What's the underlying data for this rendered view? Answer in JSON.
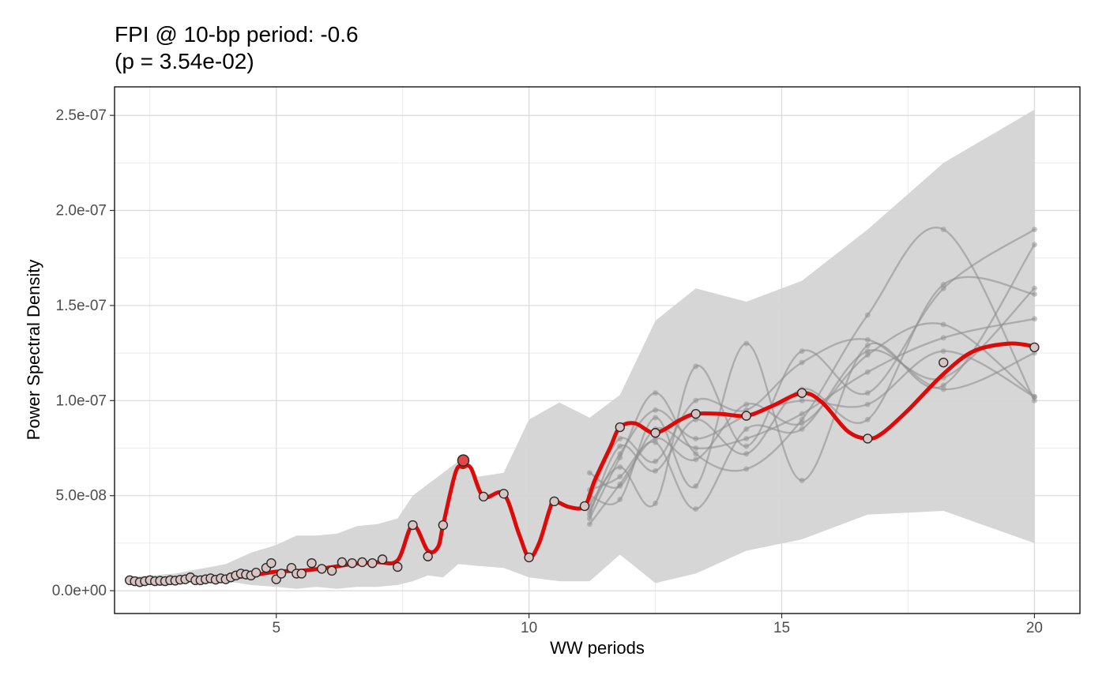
{
  "chart_data": {
    "type": "line",
    "title": "FPI @ 10-bp period: -0.6",
    "subtitle": "(p = 3.54e-02)",
    "xlabel": "WW periods",
    "ylabel": "Power Spectral Density",
    "xlim": [
      1.8,
      20.9
    ],
    "ylim": [
      -1.2e-08,
      2.65e-07
    ],
    "x_ticks": [
      5,
      10,
      15,
      20
    ],
    "x_tick_labels": [
      "5",
      "10",
      "15",
      "20"
    ],
    "y_ticks": [
      0,
      5e-08,
      1e-07,
      1.5e-07,
      2e-07,
      2.5e-07
    ],
    "y_tick_labels": [
      "0.0e+00",
      "5.0e-08",
      "1.0e-07",
      "1.5e-07",
      "2.0e-07",
      "2.5e-07"
    ],
    "grid": true,
    "legend": "none",
    "colors": {
      "observed_line": "#dd0a0a",
      "peak_point": "#e24848",
      "band_fill": "#d4d4d4",
      "null_line": "#8f8f8f",
      "point_fill": "#d9c4c4"
    },
    "envelope": {
      "x": [
        2.0,
        3.0,
        4.0,
        4.5,
        5.0,
        5.4,
        5.8,
        6.2,
        6.6,
        7.0,
        7.4,
        7.7,
        8.0,
        8.3,
        8.6,
        9.0,
        9.5,
        10.0,
        10.6,
        11.2,
        11.8,
        12.5,
        13.3,
        14.3,
        15.4,
        16.7,
        18.2,
        20.0
      ],
      "upper": [
        7e-09,
        9e-09,
        1.4e-08,
        2e-08,
        2.4e-08,
        2.9e-08,
        2.9e-08,
        3e-08,
        3.4e-08,
        3.5e-08,
        3.8e-08,
        5e-08,
        5.6e-08,
        6.2e-08,
        6.8e-08,
        6e-08,
        6.2e-08,
        9e-08,
        9.9e-08,
        9.1e-08,
        1.03e-07,
        1.42e-07,
        1.59e-07,
        1.52e-07,
        1.63e-07,
        1.9e-07,
        2.25e-07,
        2.53e-07
      ],
      "lower": [
        5e-09,
        5e-09,
        5e-09,
        3e-09,
        2e-09,
        1e-09,
        2e-09,
        1e-09,
        2e-09,
        2e-09,
        3e-09,
        5e-09,
        8e-09,
        7e-09,
        1.4e-08,
        1.3e-08,
        1.2e-08,
        7e-09,
        5e-09,
        5e-09,
        1.9e-08,
        4e-09,
        9e-09,
        2.1e-08,
        2.7e-08,
        4e-08,
        4.2e-08,
        2.5e-08
      ]
    },
    "null_x": [
      11.2,
      11.8,
      12.5,
      13.3,
      14.3,
      15.4,
      16.7,
      18.2,
      20.0
    ],
    "null_series": [
      [
        3.8e-08,
        7e-08,
        1.04e-07,
        7.2e-08,
        6.4e-08,
        9e-08,
        1.45e-07,
        1.9e-07,
        1e-07
      ],
      [
        4.5e-08,
        6.5e-08,
        4.6e-08,
        1.18e-07,
        7.6e-08,
        1.26e-07,
        1.04e-07,
        1.59e-07,
        1.9e-07
      ],
      [
        5e-08,
        4.8e-08,
        9.1e-08,
        5.5e-08,
        1.3e-07,
        5.8e-08,
        1.29e-07,
        1.08e-07,
        1.82e-07
      ],
      [
        3.5e-08,
        5.6e-08,
        8e-08,
        6.9e-08,
        9.8e-08,
        8.8e-08,
        1.24e-07,
        1.4e-07,
        1.02e-07
      ],
      [
        4e-08,
        7.6e-08,
        6.3e-08,
        9e-08,
        7.2e-08,
        1.06e-07,
        9e-08,
        1.61e-07,
        1.56e-07
      ],
      [
        6.2e-08,
        5.5e-08,
        8.5e-08,
        7.5e-08,
        8e-08,
        9.3e-08,
        1.15e-07,
        1.33e-07,
        1.43e-07
      ],
      [
        4.8e-08,
        8e-08,
        6.8e-08,
        1e-07,
        9.5e-08,
        1.2e-07,
        1.32e-07,
        1.06e-07,
        1.25e-07
      ],
      [
        5.3e-08,
        6e-08,
        7.8e-08,
        4.3e-08,
        8.5e-08,
        8.5e-08,
        1.26e-07,
        1.12e-07,
        1.59e-07
      ],
      [
        4.2e-08,
        7.2e-08,
        9.5e-08,
        8e-08,
        9.2e-08,
        1e-07,
        9.8e-08,
        1.26e-07,
        1.02e-07
      ]
    ],
    "observed": {
      "x": [
        2.1,
        2.2,
        2.3,
        2.4,
        2.5,
        2.6,
        2.7,
        2.8,
        2.9,
        3.0,
        3.1,
        3.2,
        3.3,
        3.4,
        3.5,
        3.6,
        3.7,
        3.8,
        3.9,
        4.0,
        4.1,
        4.2,
        4.3,
        4.4,
        4.5,
        4.6,
        4.8,
        4.9,
        5.0,
        5.1,
        5.3,
        5.4,
        5.5,
        5.7,
        5.9,
        6.1,
        6.3,
        6.5,
        6.7,
        6.9,
        7.1,
        7.4,
        7.7,
        8.0,
        8.3,
        8.7,
        9.1,
        9.5,
        10.0,
        10.5,
        11.1,
        11.8,
        12.5,
        13.3,
        14.3,
        15.4,
        16.7,
        18.2,
        20.0
      ],
      "y": [
        5.5e-09,
        5e-09,
        4.5e-09,
        5e-09,
        5.5e-09,
        5e-09,
        5.2e-09,
        5e-09,
        5.5e-09,
        5.3e-09,
        5.8e-09,
        6e-09,
        7e-09,
        5.5e-09,
        5.5e-09,
        6e-09,
        6.5e-09,
        5.8e-09,
        6.5e-09,
        6e-09,
        7e-09,
        8e-09,
        9e-09,
        8.5e-09,
        8e-09,
        9.5e-09,
        1.2e-08,
        1.45e-08,
        6e-09,
        9e-09,
        1.2e-08,
        9e-09,
        9e-09,
        1.45e-08,
        1.15e-08,
        1.05e-08,
        1.5e-08,
        1.45e-08,
        1.5e-08,
        1.45e-08,
        1.65e-08,
        1.25e-08,
        3.45e-08,
        1.8e-08,
        3.45e-08,
        6.85e-08,
        4.95e-08,
        5.1e-08,
        1.75e-08,
        4.7e-08,
        4.45e-08,
        8.6e-08,
        8.3e-08,
        9.3e-08,
        9.2e-08,
        1.04e-07,
        8e-08,
        1.2e-07,
        1.28e-07
      ]
    },
    "observed_line": {
      "x": [
        2.1,
        2.5,
        3.0,
        3.5,
        4.0,
        4.5,
        5.0,
        5.5,
        6.0,
        6.5,
        7.0,
        7.4,
        7.7,
        8.0,
        8.2,
        8.3,
        8.55,
        8.7,
        8.85,
        9.1,
        9.5,
        9.8,
        10.0,
        10.2,
        10.4,
        10.5,
        10.8,
        11.1,
        11.3,
        11.6,
        11.8,
        12.1,
        12.5,
        13.0,
        13.3,
        13.8,
        14.3,
        14.8,
        15.4,
        15.8,
        16.3,
        16.7,
        17.0,
        17.5,
        18.2,
        18.8,
        19.5,
        20.0
      ],
      "y": [
        5e-09,
        5e-09,
        5.3e-09,
        5.8e-09,
        6.5e-09,
        8e-09,
        1e-08,
        1.05e-08,
        1.2e-08,
        1.4e-08,
        1.5e-08,
        1.6e-08,
        3.45e-08,
        2.1e-08,
        2.3e-08,
        3.45e-08,
        6.25e-08,
        6.5e-08,
        6.45e-08,
        4.95e-08,
        5.1e-08,
        3e-08,
        1.75e-08,
        2.5e-08,
        4.2e-08,
        4.7e-08,
        4.4e-08,
        4.45e-08,
        5.8e-08,
        7.5e-08,
        8.6e-08,
        8.8e-08,
        8.3e-08,
        9e-08,
        9.3e-08,
        9.3e-08,
        9.2e-08,
        9.7e-08,
        1.04e-07,
        9.9e-08,
        8.4e-08,
        8e-08,
        8.3e-08,
        9.5e-08,
        1.14e-07,
        1.26e-07,
        1.3e-07,
        1.285e-07
      ]
    },
    "highlight": {
      "x": 8.7,
      "y": 6.85e-08
    }
  }
}
